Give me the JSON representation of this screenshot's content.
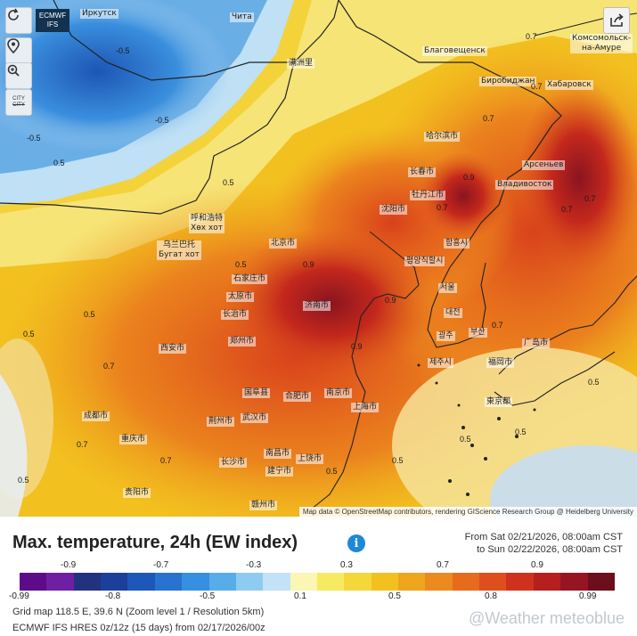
{
  "model_badge": {
    "line1": "ECMWF",
    "line2": "IFS"
  },
  "controls": {
    "city_label_line1": "CITY",
    "city_label_line2": "CITY"
  },
  "attribution": "Map data © OpenStreetMap contributors, rendering GIScience Research Group @ Heidelberg University",
  "cities": [
    {
      "name": "Иркутск"
    },
    {
      "name": "Чита"
    },
    {
      "name": "满洲里"
    },
    {
      "name": "Благовещенск"
    },
    {
      "name": "Комсомольск-\nна-Амуре"
    },
    {
      "name": "Биробиджан"
    },
    {
      "name": "Хабаровск"
    },
    {
      "name": "哈尔滨市"
    },
    {
      "name": "Арсеньев"
    },
    {
      "name": "长春市"
    },
    {
      "name": "Владивосток"
    },
    {
      "name": "牡丹江市"
    },
    {
      "name": "沈阳市"
    },
    {
      "name": "呼和浩特\nХөх хот"
    },
    {
      "name": "乌兰巴托\nБугат хот"
    },
    {
      "name": "北京市"
    },
    {
      "name": "함흥시"
    },
    {
      "name": "평양직할시"
    },
    {
      "name": "石家庄市"
    },
    {
      "name": "太原市"
    },
    {
      "name": "济南市"
    },
    {
      "name": "서울"
    },
    {
      "name": "대전"
    },
    {
      "name": "광주"
    },
    {
      "name": "부산"
    },
    {
      "name": "제주시"
    },
    {
      "name": "长治市"
    },
    {
      "name": "郑州市"
    },
    {
      "name": "西安市"
    },
    {
      "name": "福岡市"
    },
    {
      "name": "東京都"
    },
    {
      "name": "南京市"
    },
    {
      "name": "国阜县"
    },
    {
      "name": "合肥市"
    },
    {
      "name": "上海市"
    },
    {
      "name": "成都市"
    },
    {
      "name": "荆州市"
    },
    {
      "name": "武汉市"
    },
    {
      "name": "重庆市"
    },
    {
      "name": "南昌市"
    },
    {
      "name": "长沙市"
    },
    {
      "name": "上饶市"
    },
    {
      "name": "建宁市"
    },
    {
      "name": "贵阳市"
    },
    {
      "name": "赣州市"
    },
    {
      "name": "广岛市"
    }
  ],
  "values": [
    {
      "v": "0.7"
    },
    {
      "v": "-0.5"
    },
    {
      "v": "-0.5"
    },
    {
      "v": "-0.5"
    },
    {
      "v": "0.7"
    },
    {
      "v": "0.7"
    },
    {
      "v": "0.7"
    },
    {
      "v": "0.5"
    },
    {
      "v": "0.9"
    },
    {
      "v": "0.9"
    },
    {
      "v": "0.5"
    },
    {
      "v": "0.5"
    },
    {
      "v": "0.7"
    },
    {
      "v": "0.9"
    },
    {
      "v": "0.7"
    },
    {
      "v": "0.9"
    },
    {
      "v": "0.7"
    },
    {
      "v": "0.5"
    },
    {
      "v": "0.5"
    },
    {
      "v": "0.7"
    },
    {
      "v": "0.7"
    },
    {
      "v": "0.5"
    },
    {
      "v": "0.7"
    },
    {
      "v": "0.5"
    },
    {
      "v": "0.5"
    },
    {
      "v": "0.5"
    },
    {
      "v": "0.5"
    },
    {
      "v": "0.5"
    }
  ],
  "title": "Max. temperature, 24h (EW index)",
  "period": {
    "from": "From Sat 02/21/2026, 08:00am CST",
    "to": "to Sun 02/22/2026, 08:00am CST"
  },
  "legend": {
    "colors": [
      "#5e0b8a",
      "#6f1fa3",
      "#22327f",
      "#1b3f9b",
      "#1d58b8",
      "#2873cf",
      "#3590e0",
      "#57ade8",
      "#8fcbf0",
      "#c4e2f6",
      "#fbf6b3",
      "#f7ea63",
      "#f4d73a",
      "#f2c11f",
      "#efa51e",
      "#eb8a1e",
      "#e66b1d",
      "#df4e1d",
      "#cf321c",
      "#b51f1e",
      "#951622",
      "#6d0e1c"
    ],
    "top_ticks": [
      "-0.9",
      "-0.7",
      "-0.3",
      "0.3",
      "0.7",
      "0.9"
    ],
    "bottom_ticks": [
      "-0.99",
      "-0.8",
      "-0.5",
      "0.1",
      "0.5",
      "0.8",
      "0.99"
    ]
  },
  "grid_info": "Grid map 118.5 E, 39.6 N (Zoom level 1 / Resolution 5km)",
  "model_info": "ECMWF IFS HRES 0z/12z (15 days) from 02/17/2026/00z",
  "brand": "@Weather meteoblue"
}
